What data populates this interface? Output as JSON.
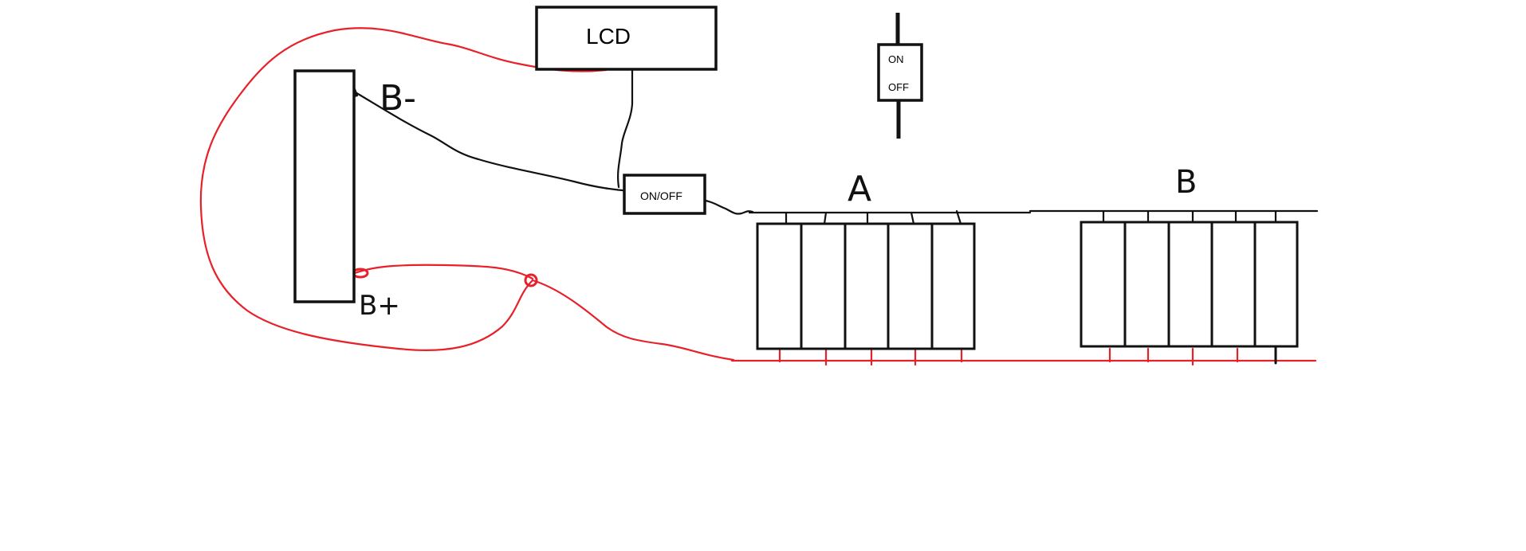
{
  "lcd_label": "LCD",
  "switch_label": "ON/OFF",
  "toggle": {
    "on_label": "ON",
    "off_label": "OFF"
  },
  "bms_labels": {
    "minus": "B-",
    "plus": "B+"
  },
  "packs": [
    {
      "label": "A",
      "cells": 5
    },
    {
      "label": "B",
      "cells": 5
    }
  ],
  "colors": {
    "positive": "#e8202a",
    "negative": "#111111",
    "outline": "#111111"
  }
}
